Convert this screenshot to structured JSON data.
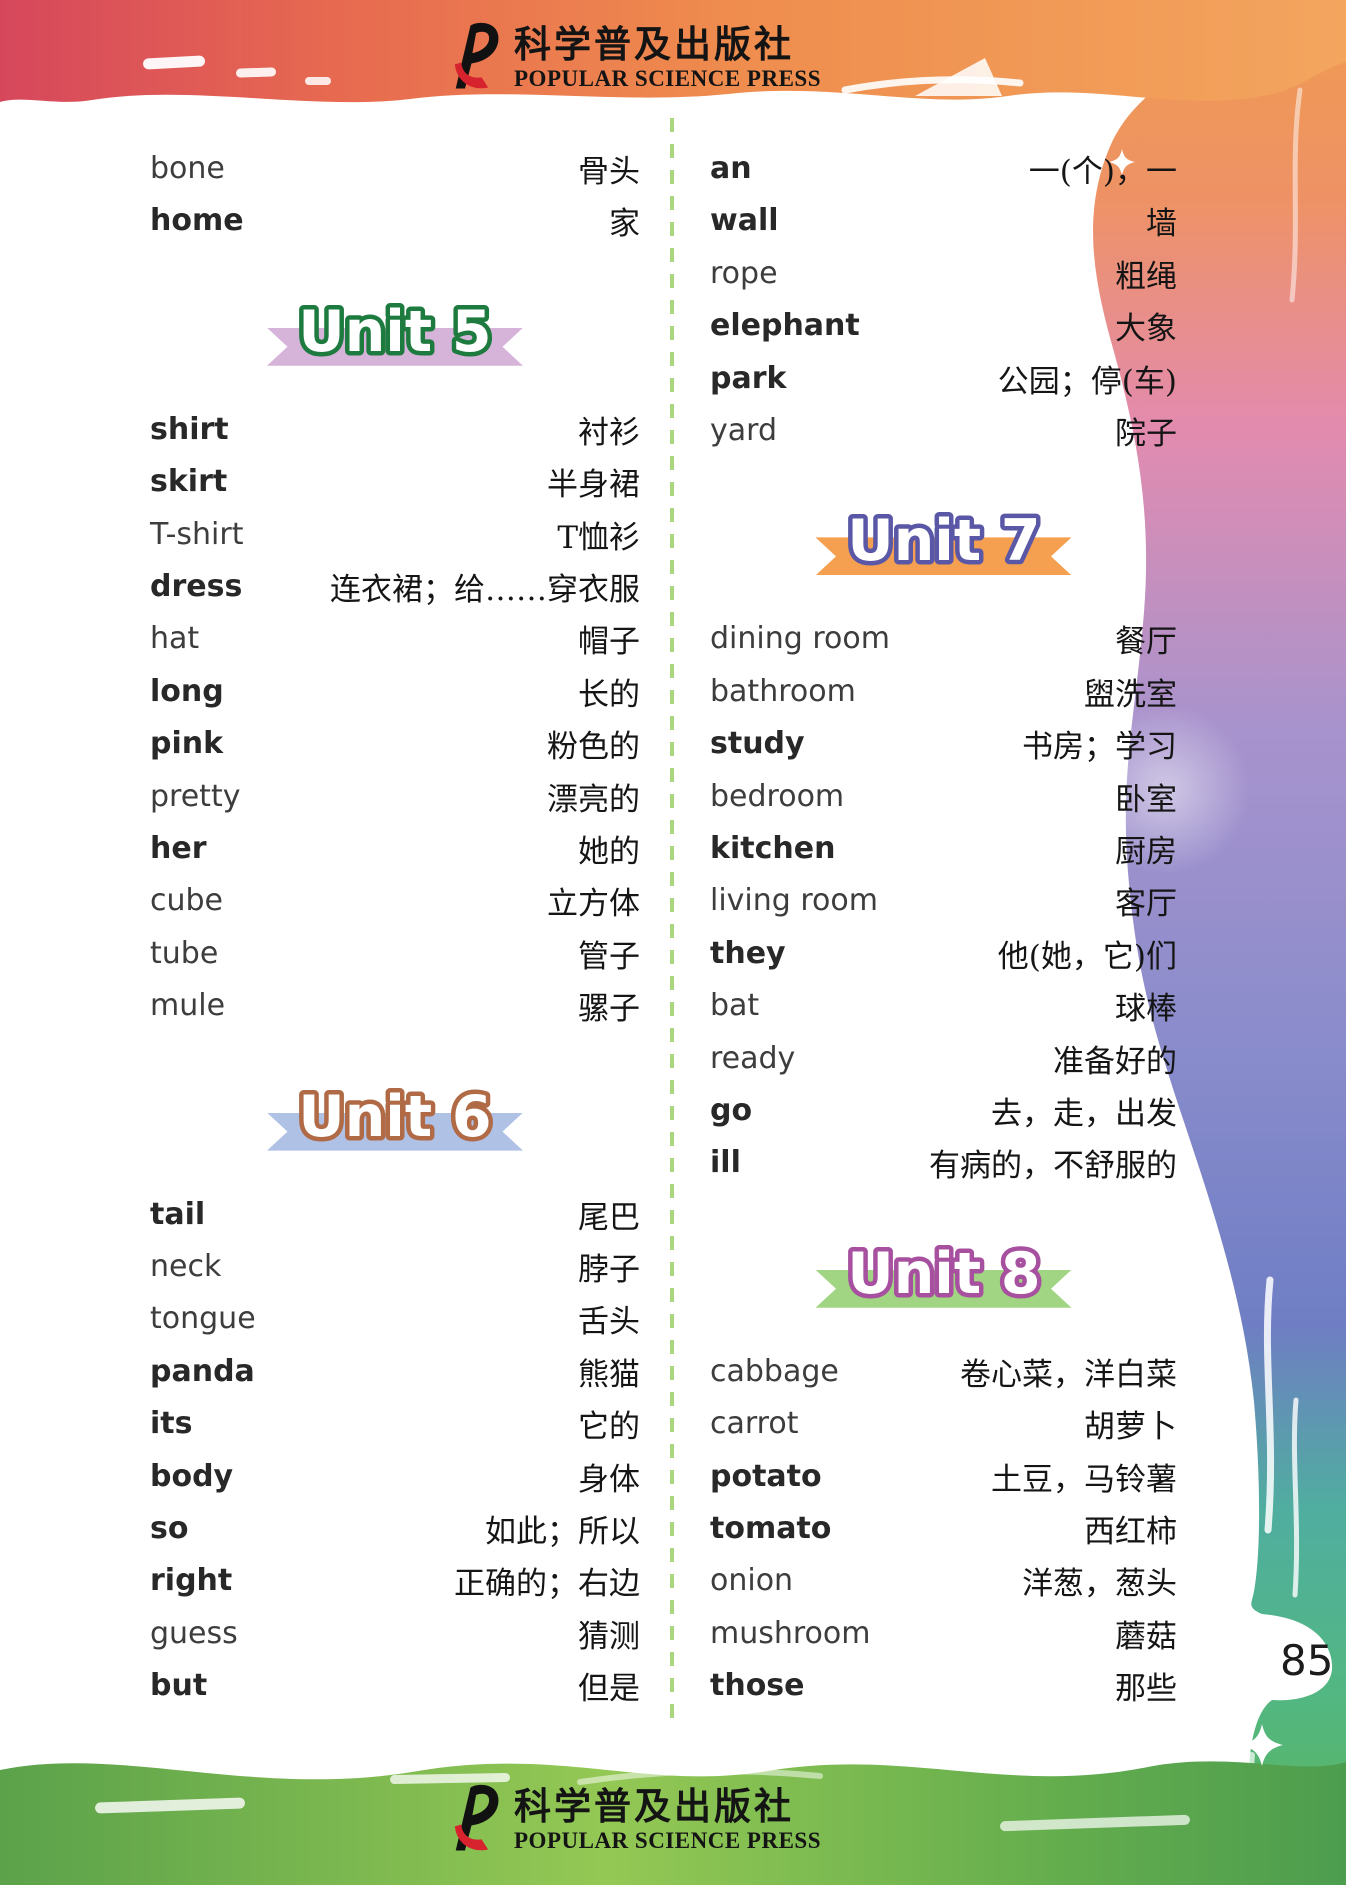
{
  "page": {
    "number": "85"
  },
  "publisher": {
    "name_zh": "科学普及出版社",
    "name_en": "POPULAR SCIENCE PRESS"
  },
  "divider_color": "#aad77e",
  "columns": [
    {
      "name": "left",
      "items": [
        {
          "type": "word",
          "en": "bone",
          "zh": "骨头",
          "bold": false
        },
        {
          "type": "word",
          "en": "home",
          "zh": "家",
          "bold": true
        },
        {
          "type": "unit",
          "label": "Unit 5",
          "outline": "#1e7b40",
          "ribbon": "#d6b3d9"
        },
        {
          "type": "word",
          "en": "shirt",
          "zh": "衬衫",
          "bold": true
        },
        {
          "type": "word",
          "en": "skirt",
          "zh": "半身裙",
          "bold": true
        },
        {
          "type": "word",
          "en": "T-shirt",
          "zh": "T恤衫",
          "bold": false
        },
        {
          "type": "word",
          "en": "dress",
          "zh": "连衣裙；给……穿衣服",
          "bold": true
        },
        {
          "type": "word",
          "en": "hat",
          "zh": "帽子",
          "bold": false
        },
        {
          "type": "word",
          "en": "long",
          "zh": "长的",
          "bold": true
        },
        {
          "type": "word",
          "en": "pink",
          "zh": "粉色的",
          "bold": true
        },
        {
          "type": "word",
          "en": "pretty",
          "zh": "漂亮的",
          "bold": false
        },
        {
          "type": "word",
          "en": "her",
          "zh": "她的",
          "bold": true
        },
        {
          "type": "word",
          "en": "cube",
          "zh": "立方体",
          "bold": false
        },
        {
          "type": "word",
          "en": "tube",
          "zh": "管子",
          "bold": false
        },
        {
          "type": "word",
          "en": "mule",
          "zh": "骡子",
          "bold": false
        },
        {
          "type": "unit",
          "label": "Unit 6",
          "outline": "#b06a45",
          "ribbon": "#b0c1e6"
        },
        {
          "type": "word",
          "en": "tail",
          "zh": "尾巴",
          "bold": true
        },
        {
          "type": "word",
          "en": "neck",
          "zh": "脖子",
          "bold": false
        },
        {
          "type": "word",
          "en": "tongue",
          "zh": "舌头",
          "bold": false
        },
        {
          "type": "word",
          "en": "panda",
          "zh": "熊猫",
          "bold": true
        },
        {
          "type": "word",
          "en": "its",
          "zh": "它的",
          "bold": true
        },
        {
          "type": "word",
          "en": "body",
          "zh": "身体",
          "bold": true
        },
        {
          "type": "word",
          "en": "so",
          "zh": "如此；所以",
          "bold": true
        },
        {
          "type": "word",
          "en": "right",
          "zh": "正确的；右边",
          "bold": true
        },
        {
          "type": "word",
          "en": "guess",
          "zh": "猜测",
          "bold": false
        },
        {
          "type": "word",
          "en": "but",
          "zh": "但是",
          "bold": true
        }
      ]
    },
    {
      "name": "right",
      "items": [
        {
          "type": "word",
          "en": "an",
          "zh": "一(个)，一",
          "bold": true
        },
        {
          "type": "word",
          "en": "wall",
          "zh": "墙",
          "bold": true
        },
        {
          "type": "word",
          "en": "rope",
          "zh": "粗绳",
          "bold": false
        },
        {
          "type": "word",
          "en": "elephant",
          "zh": "大象",
          "bold": true
        },
        {
          "type": "word",
          "en": "park",
          "zh": "公园；停(车)",
          "bold": true
        },
        {
          "type": "word",
          "en": "yard",
          "zh": "院子",
          "bold": false
        },
        {
          "type": "unit",
          "label": "Unit 7",
          "outline": "#5a58a6",
          "ribbon": "#f5a050"
        },
        {
          "type": "word",
          "en": "dining room",
          "zh": "餐厅",
          "bold": false
        },
        {
          "type": "word",
          "en": "bathroom",
          "zh": "盥洗室",
          "bold": false
        },
        {
          "type": "word",
          "en": "study",
          "zh": "书房；学习",
          "bold": true
        },
        {
          "type": "word",
          "en": "bedroom",
          "zh": "卧室",
          "bold": false
        },
        {
          "type": "word",
          "en": "kitchen",
          "zh": "厨房",
          "bold": true
        },
        {
          "type": "word",
          "en": "living room",
          "zh": "客厅",
          "bold": false
        },
        {
          "type": "word",
          "en": "they",
          "zh": "他(她，它)们",
          "bold": true
        },
        {
          "type": "word",
          "en": "bat",
          "zh": "球棒",
          "bold": false
        },
        {
          "type": "word",
          "en": "ready",
          "zh": "准备好的",
          "bold": false
        },
        {
          "type": "word",
          "en": "go",
          "zh": "去，走，出发",
          "bold": true
        },
        {
          "type": "word",
          "en": "ill",
          "zh": "有病的，不舒服的",
          "bold": true
        },
        {
          "type": "unit",
          "label": "Unit 8",
          "outline": "#a6509f",
          "ribbon": "#a2d583"
        },
        {
          "type": "word",
          "en": "cabbage",
          "zh": "卷心菜，洋白菜",
          "bold": false
        },
        {
          "type": "word",
          "en": "carrot",
          "zh": "胡萝卜",
          "bold": false
        },
        {
          "type": "word",
          "en": "potato",
          "zh": "土豆，马铃薯",
          "bold": true
        },
        {
          "type": "word",
          "en": "tomato",
          "zh": "西红柿",
          "bold": true
        },
        {
          "type": "word",
          "en": "onion",
          "zh": "洋葱，葱头",
          "bold": false
        },
        {
          "type": "word",
          "en": "mushroom",
          "zh": "蘑菇",
          "bold": false
        },
        {
          "type": "word",
          "en": "those",
          "zh": "那些",
          "bold": true
        }
      ]
    }
  ]
}
